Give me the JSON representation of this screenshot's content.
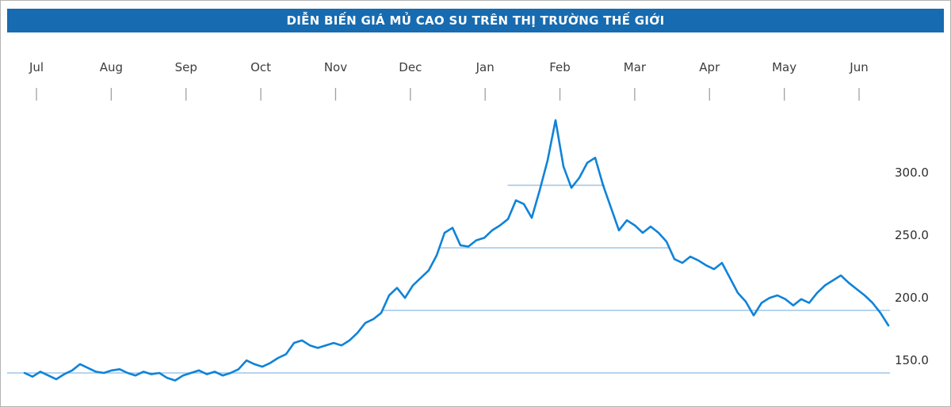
{
  "header": {
    "title": "DIỄN BIẾN GIÁ MỦ CAO SU TRÊN THỊ TRƯỜNG THẾ GIỚI"
  },
  "colors": {
    "header_bg": "#176bb0",
    "price_line": "#0f83d8",
    "gridline": "#9fc6e8",
    "tick": "#a0a0a0",
    "month_text": "#3d3d3d",
    "yaxis_text": "#2e2e2e",
    "border": "#b3b3b3"
  },
  "chart_data": {
    "type": "line",
    "title": "DIỄN BIẾN GIÁ MỦ CAO SU TRÊN THỊ TRƯỜNG THẾ GIỚI",
    "x_axis": {
      "position": "top",
      "categories": [
        "Jul",
        "Aug",
        "Sep",
        "Oct",
        "Nov",
        "Dec",
        "Jan",
        "Feb",
        "Mar",
        "Apr",
        "May",
        "Jun"
      ]
    },
    "y_axis": {
      "position": "right",
      "tick_labels": [
        "300.0",
        "250.0",
        "200.0",
        "150.0"
      ],
      "tick_values": [
        300,
        250,
        200,
        150
      ]
    },
    "ylim": [
      124,
      376
    ],
    "legend": "off",
    "grid": "horizontal-partial",
    "series": [
      {
        "name": "rubber-price",
        "values": [
          150,
          147,
          151,
          148,
          145,
          149,
          152,
          157,
          154,
          151,
          150,
          152,
          153,
          150,
          148,
          151,
          149,
          150,
          146,
          144,
          148,
          150,
          152,
          149,
          151,
          148,
          150,
          153,
          160,
          157,
          155,
          158,
          162,
          165,
          174,
          176,
          172,
          170,
          172,
          174,
          172,
          176,
          182,
          190,
          193,
          198,
          212,
          218,
          210,
          220,
          226,
          232,
          244,
          262,
          266,
          252,
          251,
          256,
          258,
          264,
          268,
          273,
          288,
          285,
          274,
          296,
          320,
          352,
          315,
          298,
          306,
          318,
          322,
          300,
          282,
          264,
          272,
          268,
          262,
          267,
          262,
          255,
          241,
          238,
          243,
          240,
          236,
          233,
          238,
          226,
          214,
          207,
          196,
          206,
          210,
          212,
          209,
          204,
          209,
          206,
          214,
          220,
          224,
          228,
          222,
          217,
          212,
          206,
          198,
          188
        ]
      }
    ],
    "gridline_segments": [
      {
        "value": 150,
        "from": 0.0,
        "to": 1.0
      },
      {
        "value": 200,
        "from": 0.424,
        "to": 1.0
      },
      {
        "value": 250,
        "from": 0.489,
        "to": 0.751
      },
      {
        "value": 300,
        "from": 0.567,
        "to": 0.677
      }
    ]
  }
}
